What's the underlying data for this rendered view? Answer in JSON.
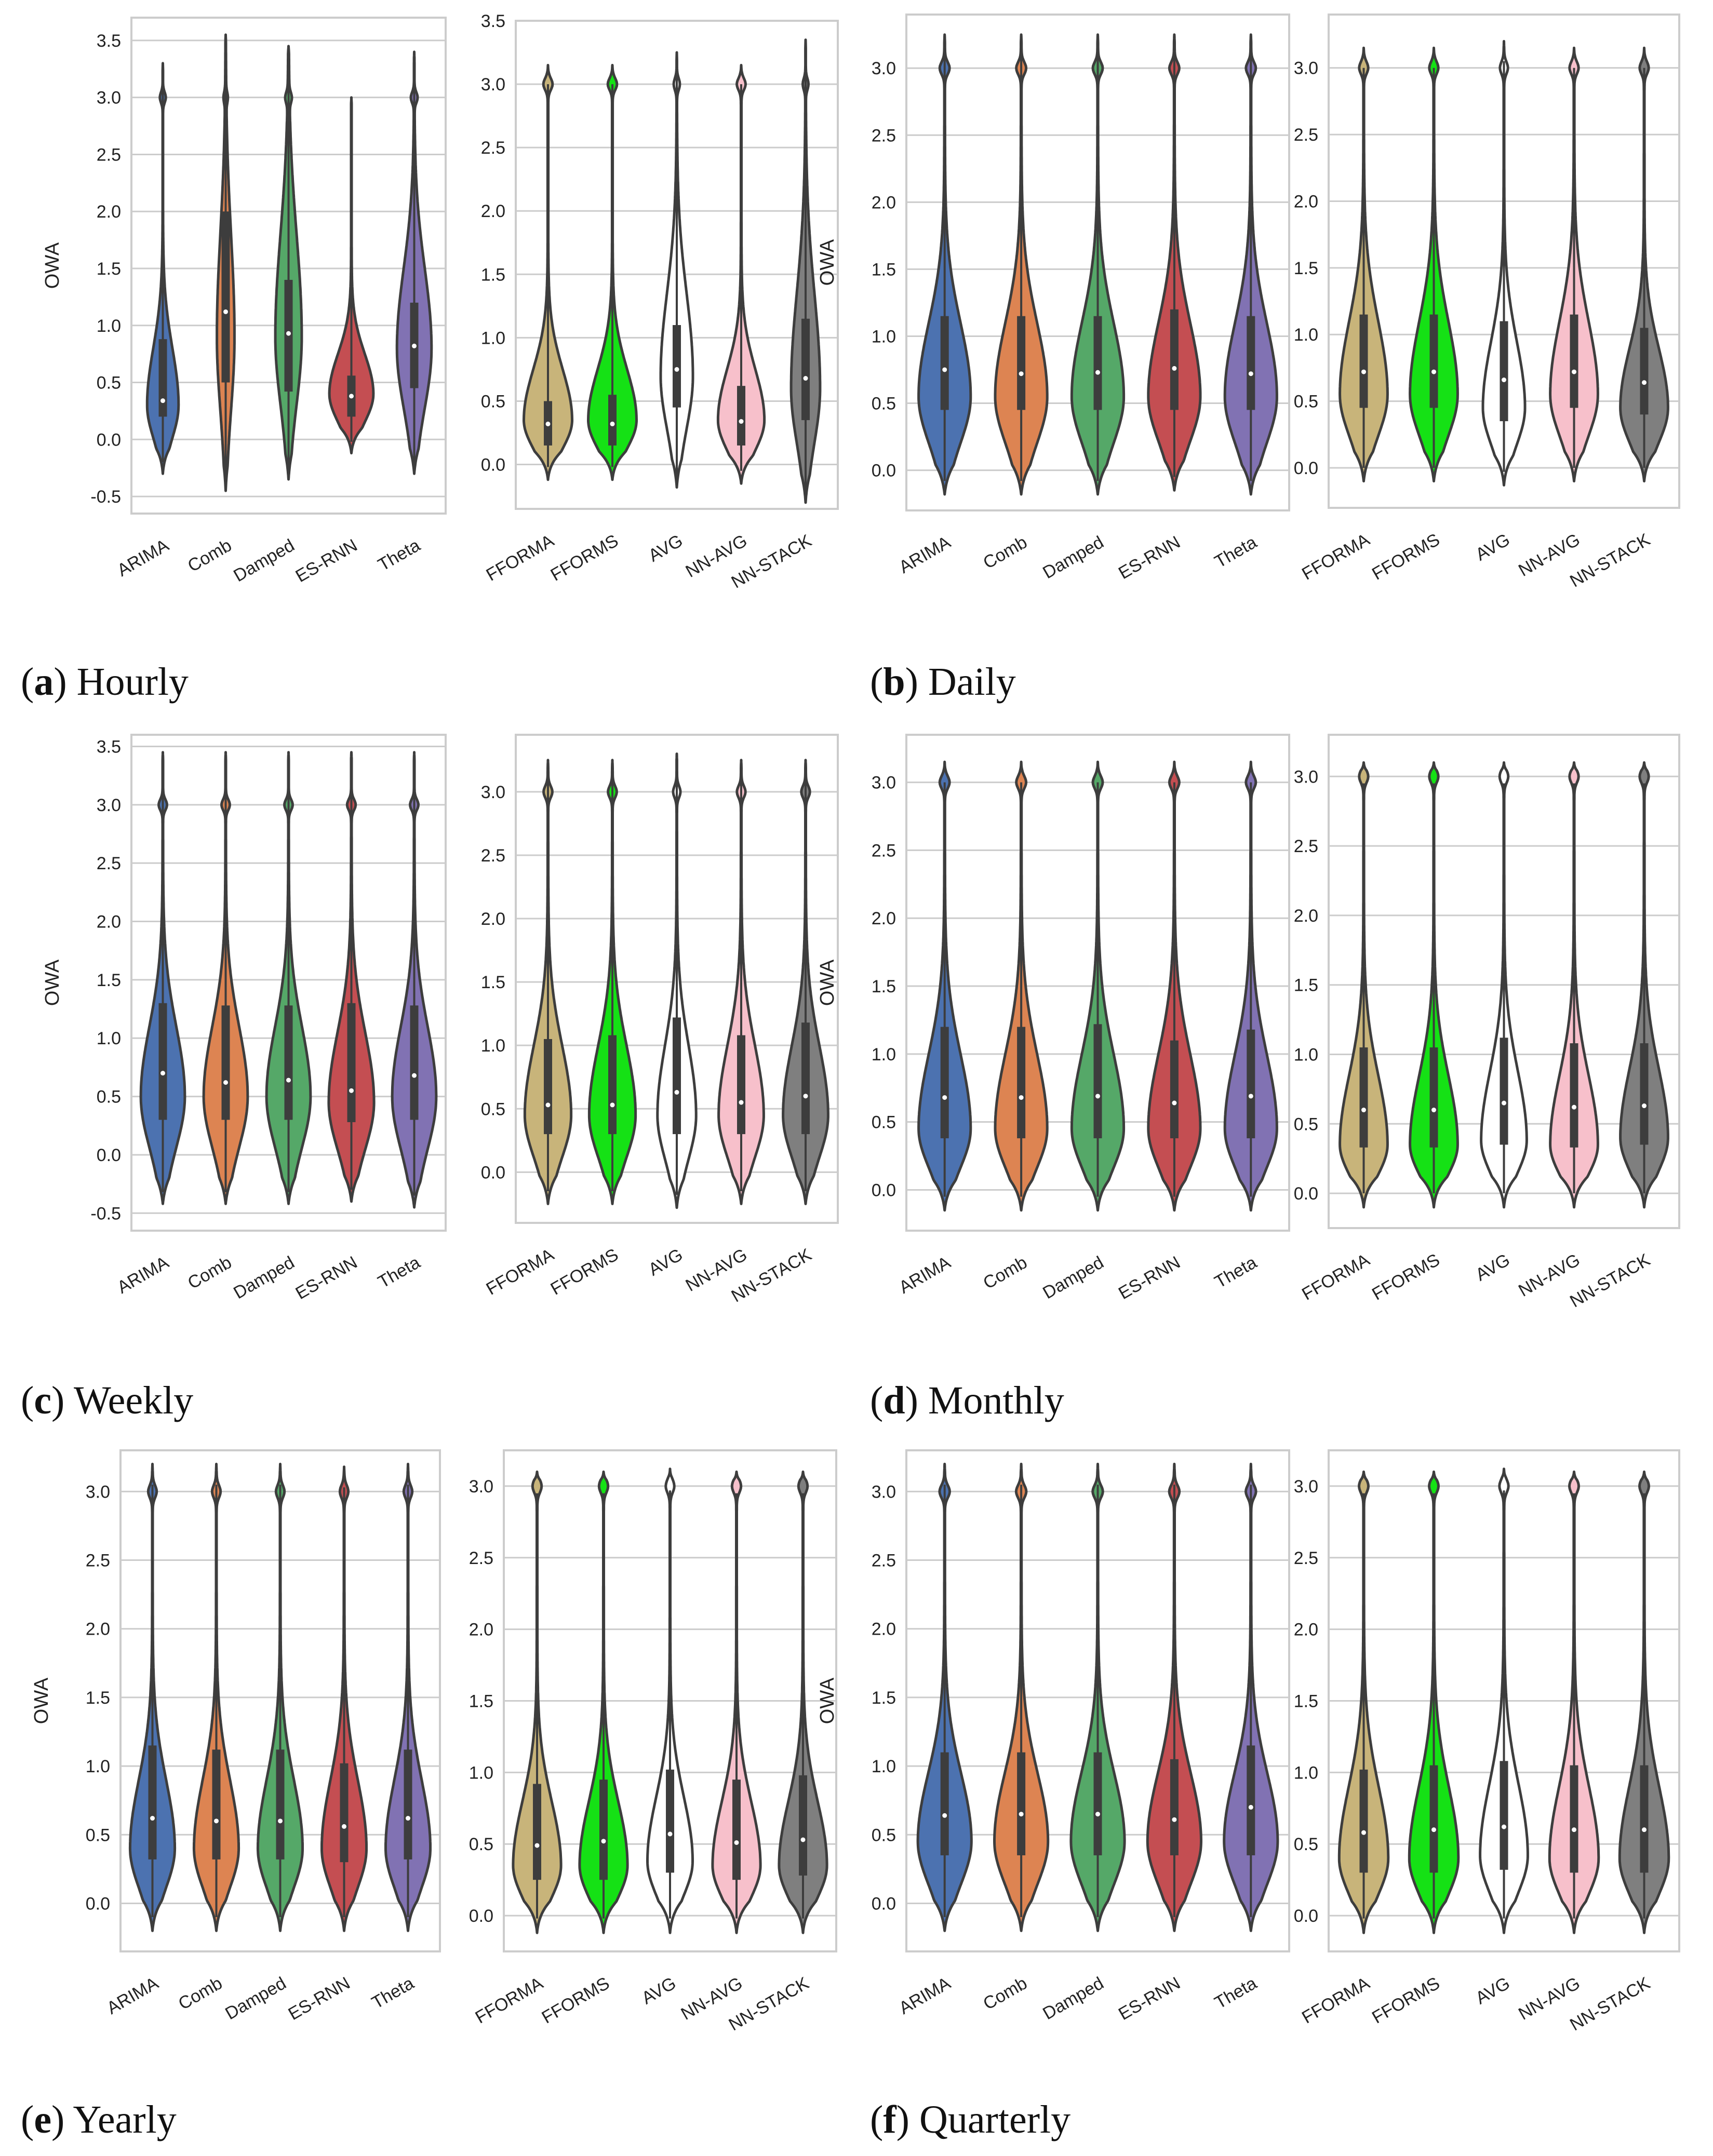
{
  "figure": {
    "captions": [
      {
        "letter": "a",
        "text": "Hourly"
      },
      {
        "letter": "b",
        "text": "Daily"
      },
      {
        "letter": "c",
        "text": "Weekly"
      },
      {
        "letter": "d",
        "text": "Monthly"
      },
      {
        "letter": "e",
        "text": "Yearly"
      },
      {
        "letter": "f",
        "text": "Quarterly"
      }
    ]
  },
  "chart_data": [
    {
      "id": "hourly-base",
      "type": "violin",
      "ylabel": "OWA",
      "ylim": [
        -0.65,
        3.7
      ],
      "yticks": [
        "-0.5",
        "0.0",
        "0.5",
        "1.0",
        "1.5",
        "2.0",
        "2.5",
        "3.0",
        "3.5"
      ],
      "grid": true,
      "categories": [
        "ARIMA",
        "Comb",
        "Damped",
        "ES-RNN",
        "Theta"
      ],
      "colors": [
        "#4c72b0",
        "#dd8452",
        "#55a868",
        "#c44e52",
        "#8172b3"
      ],
      "violins": [
        {
          "min": -0.3,
          "max": 3.3,
          "q1": 0.2,
          "median": 0.34,
          "q3": 0.88,
          "mode": 0.3,
          "wmax": 0.5,
          "upper": 0.5
        },
        {
          "min": -0.45,
          "max": 3.55,
          "q1": 0.5,
          "median": 1.12,
          "q3": 2.0,
          "mode": 0.9,
          "wmax": 0.28,
          "upper": 0.9
        },
        {
          "min": -0.35,
          "max": 3.45,
          "q1": 0.42,
          "median": 0.93,
          "q3": 1.4,
          "mode": 0.9,
          "wmax": 0.42,
          "upper": 0.9
        },
        {
          "min": -0.12,
          "max": 3.0,
          "q1": 0.2,
          "median": 0.38,
          "q3": 0.56,
          "mode": 0.4,
          "wmax": 0.7,
          "upper": 0.35
        },
        {
          "min": -0.3,
          "max": 3.4,
          "q1": 0.45,
          "median": 0.82,
          "q3": 1.2,
          "mode": 0.8,
          "wmax": 0.55,
          "upper": 0.7
        }
      ]
    },
    {
      "id": "hourly-ens",
      "type": "violin",
      "ylabel": "",
      "ylim": [
        -0.35,
        3.5
      ],
      "yticks": [
        "0.0",
        "0.5",
        "1.0",
        "1.5",
        "2.0",
        "2.5",
        "3.0",
        "3.5"
      ],
      "grid": true,
      "categories": [
        "FFORMA",
        "FFORMS",
        "AVG",
        "NN-AVG",
        "NN-STACK"
      ],
      "colors": [
        "#c8b47a",
        "#15e115",
        "#ffffff",
        "#f7c0cb",
        "#7f7f7f"
      ],
      "violins": [
        {
          "min": -0.12,
          "max": 3.15,
          "q1": 0.15,
          "median": 0.32,
          "q3": 0.5,
          "mode": 0.35,
          "wmax": 0.75,
          "upper": 0.4
        },
        {
          "min": -0.12,
          "max": 3.15,
          "q1": 0.15,
          "median": 0.32,
          "q3": 0.55,
          "mode": 0.35,
          "wmax": 0.75,
          "upper": 0.4
        },
        {
          "min": -0.18,
          "max": 3.25,
          "q1": 0.45,
          "median": 0.75,
          "q3": 1.1,
          "mode": 0.7,
          "wmax": 0.5,
          "upper": 0.65
        },
        {
          "min": -0.15,
          "max": 3.15,
          "q1": 0.15,
          "median": 0.34,
          "q3": 0.62,
          "mode": 0.35,
          "wmax": 0.72,
          "upper": 0.4
        },
        {
          "min": -0.3,
          "max": 3.35,
          "q1": 0.35,
          "median": 0.68,
          "q3": 1.15,
          "mode": 0.6,
          "wmax": 0.45,
          "upper": 0.75
        }
      ]
    },
    {
      "id": "daily-base",
      "type": "violin",
      "ylabel": "OWA",
      "ylim": [
        -0.3,
        3.4
      ],
      "yticks": [
        "0.0",
        "0.5",
        "1.0",
        "1.5",
        "2.0",
        "2.5",
        "3.0"
      ],
      "grid": true,
      "categories": [
        "ARIMA",
        "Comb",
        "Damped",
        "ES-RNN",
        "Theta"
      ],
      "colors": [
        "#4c72b0",
        "#dd8452",
        "#55a868",
        "#c44e52",
        "#8172b3"
      ],
      "violins": [
        {
          "min": -0.18,
          "max": 3.25,
          "q1": 0.45,
          "median": 0.75,
          "q3": 1.15,
          "mode": 0.55,
          "wmax": 0.68,
          "upper": 0.55
        },
        {
          "min": -0.18,
          "max": 3.25,
          "q1": 0.45,
          "median": 0.72,
          "q3": 1.15,
          "mode": 0.55,
          "wmax": 0.68,
          "upper": 0.55
        },
        {
          "min": -0.18,
          "max": 3.25,
          "q1": 0.45,
          "median": 0.73,
          "q3": 1.15,
          "mode": 0.55,
          "wmax": 0.68,
          "upper": 0.55
        },
        {
          "min": -0.15,
          "max": 3.25,
          "q1": 0.45,
          "median": 0.76,
          "q3": 1.2,
          "mode": 0.55,
          "wmax": 0.68,
          "upper": 0.55
        },
        {
          "min": -0.18,
          "max": 3.25,
          "q1": 0.45,
          "median": 0.72,
          "q3": 1.15,
          "mode": 0.55,
          "wmax": 0.68,
          "upper": 0.55
        }
      ]
    },
    {
      "id": "daily-ens",
      "type": "violin",
      "ylabel": "",
      "ylim": [
        -0.3,
        3.4
      ],
      "yticks": [
        "0.0",
        "0.5",
        "1.0",
        "1.5",
        "2.0",
        "2.5",
        "3.0"
      ],
      "grid": true,
      "categories": [
        "FFORMA",
        "FFORMS",
        "AVG",
        "NN-AVG",
        "NN-STACK"
      ],
      "colors": [
        "#c8b47a",
        "#15e115",
        "#ffffff",
        "#f7c0cb",
        "#7f7f7f"
      ],
      "violins": [
        {
          "min": -0.1,
          "max": 3.15,
          "q1": 0.45,
          "median": 0.72,
          "q3": 1.15,
          "mode": 0.55,
          "wmax": 0.68,
          "upper": 0.55
        },
        {
          "min": -0.1,
          "max": 3.15,
          "q1": 0.45,
          "median": 0.72,
          "q3": 1.15,
          "mode": 0.55,
          "wmax": 0.68,
          "upper": 0.55
        },
        {
          "min": -0.13,
          "max": 3.2,
          "q1": 0.35,
          "median": 0.66,
          "q3": 1.1,
          "mode": 0.45,
          "wmax": 0.6,
          "upper": 0.5
        },
        {
          "min": -0.1,
          "max": 3.15,
          "q1": 0.45,
          "median": 0.72,
          "q3": 1.15,
          "mode": 0.55,
          "wmax": 0.68,
          "upper": 0.55
        },
        {
          "min": -0.1,
          "max": 3.15,
          "q1": 0.4,
          "median": 0.64,
          "q3": 1.05,
          "mode": 0.45,
          "wmax": 0.68,
          "upper": 0.45
        }
      ]
    },
    {
      "id": "weekly-base",
      "type": "violin",
      "ylabel": "OWA",
      "ylim": [
        -0.65,
        3.6
      ],
      "yticks": [
        "-0.5",
        "0.0",
        "0.5",
        "1.0",
        "1.5",
        "2.0",
        "2.5",
        "3.0",
        "3.5"
      ],
      "grid": true,
      "categories": [
        "ARIMA",
        "Comb",
        "Damped",
        "ES-RNN",
        "Theta"
      ],
      "colors": [
        "#4c72b0",
        "#dd8452",
        "#55a868",
        "#c44e52",
        "#8172b3"
      ],
      "violins": [
        {
          "min": -0.42,
          "max": 3.45,
          "q1": 0.3,
          "median": 0.7,
          "q3": 1.3,
          "mode": 0.5,
          "wmax": 0.7,
          "upper": 0.6
        },
        {
          "min": -0.42,
          "max": 3.45,
          "q1": 0.3,
          "median": 0.62,
          "q3": 1.28,
          "mode": 0.5,
          "wmax": 0.7,
          "upper": 0.6
        },
        {
          "min": -0.42,
          "max": 3.45,
          "q1": 0.3,
          "median": 0.64,
          "q3": 1.28,
          "mode": 0.5,
          "wmax": 0.7,
          "upper": 0.6
        },
        {
          "min": -0.4,
          "max": 3.45,
          "q1": 0.28,
          "median": 0.55,
          "q3": 1.3,
          "mode": 0.45,
          "wmax": 0.72,
          "upper": 0.6
        },
        {
          "min": -0.45,
          "max": 3.45,
          "q1": 0.3,
          "median": 0.68,
          "q3": 1.28,
          "mode": 0.5,
          "wmax": 0.7,
          "upper": 0.6
        }
      ]
    },
    {
      "id": "weekly-ens",
      "type": "violin",
      "ylabel": "",
      "ylim": [
        -0.4,
        3.45
      ],
      "yticks": [
        "0.0",
        "0.5",
        "1.0",
        "1.5",
        "2.0",
        "2.5",
        "3.0"
      ],
      "grid": true,
      "categories": [
        "FFORMA",
        "FFORMS",
        "AVG",
        "NN-AVG",
        "NN-STACK"
      ],
      "colors": [
        "#c8b47a",
        "#15e115",
        "#ffffff",
        "#f7c0cb",
        "#7f7f7f"
      ],
      "violins": [
        {
          "min": -0.25,
          "max": 3.25,
          "q1": 0.3,
          "median": 0.53,
          "q3": 1.05,
          "mode": 0.45,
          "wmax": 0.72,
          "upper": 0.55
        },
        {
          "min": -0.25,
          "max": 3.25,
          "q1": 0.3,
          "median": 0.53,
          "q3": 1.08,
          "mode": 0.45,
          "wmax": 0.72,
          "upper": 0.55
        },
        {
          "min": -0.28,
          "max": 3.3,
          "q1": 0.3,
          "median": 0.63,
          "q3": 1.22,
          "mode": 0.45,
          "wmax": 0.6,
          "upper": 0.55
        },
        {
          "min": -0.25,
          "max": 3.25,
          "q1": 0.3,
          "median": 0.55,
          "q3": 1.08,
          "mode": 0.45,
          "wmax": 0.7,
          "upper": 0.55
        },
        {
          "min": -0.25,
          "max": 3.25,
          "q1": 0.3,
          "median": 0.6,
          "q3": 1.18,
          "mode": 0.45,
          "wmax": 0.7,
          "upper": 0.55
        }
      ]
    },
    {
      "id": "monthly-base",
      "type": "violin",
      "ylabel": "OWA",
      "ylim": [
        -0.3,
        3.35
      ],
      "yticks": [
        "0.0",
        "0.5",
        "1.0",
        "1.5",
        "2.0",
        "2.5",
        "3.0"
      ],
      "grid": true,
      "categories": [
        "ARIMA",
        "Comb",
        "Damped",
        "ES-RNN",
        "Theta"
      ],
      "colors": [
        "#4c72b0",
        "#dd8452",
        "#55a868",
        "#c44e52",
        "#8172b3"
      ],
      "violins": [
        {
          "min": -0.15,
          "max": 3.15,
          "q1": 0.38,
          "median": 0.68,
          "q3": 1.2,
          "mode": 0.45,
          "wmax": 0.68,
          "upper": 0.55
        },
        {
          "min": -0.15,
          "max": 3.15,
          "q1": 0.38,
          "median": 0.68,
          "q3": 1.2,
          "mode": 0.45,
          "wmax": 0.68,
          "upper": 0.55
        },
        {
          "min": -0.15,
          "max": 3.15,
          "q1": 0.38,
          "median": 0.69,
          "q3": 1.22,
          "mode": 0.45,
          "wmax": 0.68,
          "upper": 0.55
        },
        {
          "min": -0.15,
          "max": 3.15,
          "q1": 0.38,
          "median": 0.64,
          "q3": 1.1,
          "mode": 0.45,
          "wmax": 0.68,
          "upper": 0.55
        },
        {
          "min": -0.15,
          "max": 3.15,
          "q1": 0.38,
          "median": 0.69,
          "q3": 1.18,
          "mode": 0.45,
          "wmax": 0.68,
          "upper": 0.55
        }
      ]
    },
    {
      "id": "monthly-ens",
      "type": "violin",
      "ylabel": "",
      "ylim": [
        -0.25,
        3.3
      ],
      "yticks": [
        "0.0",
        "0.5",
        "1.0",
        "1.5",
        "2.0",
        "2.5",
        "3.0"
      ],
      "grid": true,
      "categories": [
        "FFORMA",
        "FFORMS",
        "AVG",
        "NN-AVG",
        "NN-STACK"
      ],
      "colors": [
        "#c8b47a",
        "#15e115",
        "#ffffff",
        "#f7c0cb",
        "#7f7f7f"
      ],
      "violins": [
        {
          "min": -0.1,
          "max": 3.1,
          "q1": 0.33,
          "median": 0.6,
          "q3": 1.05,
          "mode": 0.35,
          "wmax": 0.68,
          "upper": 0.5
        },
        {
          "min": -0.1,
          "max": 3.1,
          "q1": 0.33,
          "median": 0.6,
          "q3": 1.05,
          "mode": 0.35,
          "wmax": 0.68,
          "upper": 0.5
        },
        {
          "min": -0.1,
          "max": 3.1,
          "q1": 0.35,
          "median": 0.65,
          "q3": 1.12,
          "mode": 0.38,
          "wmax": 0.65,
          "upper": 0.5
        },
        {
          "min": -0.1,
          "max": 3.1,
          "q1": 0.33,
          "median": 0.62,
          "q3": 1.08,
          "mode": 0.35,
          "wmax": 0.68,
          "upper": 0.5
        },
        {
          "min": -0.1,
          "max": 3.1,
          "q1": 0.35,
          "median": 0.63,
          "q3": 1.08,
          "mode": 0.4,
          "wmax": 0.68,
          "upper": 0.5
        }
      ]
    },
    {
      "id": "yearly-base",
      "type": "violin",
      "ylabel": "OWA",
      "ylim": [
        -0.35,
        3.3
      ],
      "yticks": [
        "0.0",
        "0.5",
        "1.0",
        "1.5",
        "2.0",
        "2.5",
        "3.0"
      ],
      "grid": true,
      "categories": [
        "ARIMA",
        "Comb",
        "Damped",
        "ES-RNN",
        "Theta"
      ],
      "colors": [
        "#4c72b0",
        "#dd8452",
        "#55a868",
        "#c44e52",
        "#8172b3"
      ],
      "violins": [
        {
          "min": -0.2,
          "max": 3.2,
          "q1": 0.32,
          "median": 0.62,
          "q3": 1.15,
          "mode": 0.4,
          "wmax": 0.7,
          "upper": 0.5
        },
        {
          "min": -0.2,
          "max": 3.2,
          "q1": 0.32,
          "median": 0.6,
          "q3": 1.12,
          "mode": 0.4,
          "wmax": 0.7,
          "upper": 0.5
        },
        {
          "min": -0.2,
          "max": 3.2,
          "q1": 0.32,
          "median": 0.6,
          "q3": 1.12,
          "mode": 0.4,
          "wmax": 0.7,
          "upper": 0.5
        },
        {
          "min": -0.2,
          "max": 3.18,
          "q1": 0.3,
          "median": 0.56,
          "q3": 1.02,
          "mode": 0.4,
          "wmax": 0.7,
          "upper": 0.5
        },
        {
          "min": -0.2,
          "max": 3.2,
          "q1": 0.32,
          "median": 0.62,
          "q3": 1.12,
          "mode": 0.4,
          "wmax": 0.7,
          "upper": 0.5
        }
      ]
    },
    {
      "id": "yearly-ens",
      "type": "violin",
      "ylabel": "",
      "ylim": [
        -0.25,
        3.25
      ],
      "yticks": [
        "0.0",
        "0.5",
        "1.0",
        "1.5",
        "2.0",
        "2.5",
        "3.0"
      ],
      "grid": true,
      "categories": [
        "FFORMA",
        "FFORMS",
        "AVG",
        "NN-AVG",
        "NN-STACK"
      ],
      "colors": [
        "#c8b47a",
        "#15e115",
        "#ffffff",
        "#f7c0cb",
        "#7f7f7f"
      ],
      "violins": [
        {
          "min": -0.12,
          "max": 3.1,
          "q1": 0.25,
          "median": 0.49,
          "q3": 0.92,
          "mode": 0.35,
          "wmax": 0.72,
          "upper": 0.45
        },
        {
          "min": -0.12,
          "max": 3.1,
          "q1": 0.25,
          "median": 0.52,
          "q3": 0.95,
          "mode": 0.35,
          "wmax": 0.72,
          "upper": 0.45
        },
        {
          "min": -0.12,
          "max": 3.12,
          "q1": 0.3,
          "median": 0.57,
          "q3": 1.02,
          "mode": 0.38,
          "wmax": 0.68,
          "upper": 0.45
        },
        {
          "min": -0.12,
          "max": 3.1,
          "q1": 0.25,
          "median": 0.51,
          "q3": 0.95,
          "mode": 0.35,
          "wmax": 0.72,
          "upper": 0.45
        },
        {
          "min": -0.12,
          "max": 3.1,
          "q1": 0.28,
          "median": 0.53,
          "q3": 0.98,
          "mode": 0.35,
          "wmax": 0.72,
          "upper": 0.45
        }
      ]
    },
    {
      "id": "quarterly-base",
      "type": "violin",
      "ylabel": "OWA",
      "ylim": [
        -0.35,
        3.3
      ],
      "yticks": [
        "0.0",
        "0.5",
        "1.0",
        "1.5",
        "2.0",
        "2.5",
        "3.0"
      ],
      "grid": true,
      "categories": [
        "ARIMA",
        "Comb",
        "Damped",
        "ES-RNN",
        "Theta"
      ],
      "colors": [
        "#4c72b0",
        "#dd8452",
        "#55a868",
        "#c44e52",
        "#8172b3"
      ],
      "violins": [
        {
          "min": -0.2,
          "max": 3.2,
          "q1": 0.35,
          "median": 0.64,
          "q3": 1.1,
          "mode": 0.45,
          "wmax": 0.7,
          "upper": 0.5
        },
        {
          "min": -0.2,
          "max": 3.2,
          "q1": 0.35,
          "median": 0.65,
          "q3": 1.1,
          "mode": 0.45,
          "wmax": 0.7,
          "upper": 0.5
        },
        {
          "min": -0.2,
          "max": 3.2,
          "q1": 0.35,
          "median": 0.65,
          "q3": 1.1,
          "mode": 0.45,
          "wmax": 0.7,
          "upper": 0.5
        },
        {
          "min": -0.2,
          "max": 3.2,
          "q1": 0.35,
          "median": 0.61,
          "q3": 1.05,
          "mode": 0.45,
          "wmax": 0.7,
          "upper": 0.5
        },
        {
          "min": -0.2,
          "max": 3.2,
          "q1": 0.35,
          "median": 0.7,
          "q3": 1.15,
          "mode": 0.45,
          "wmax": 0.7,
          "upper": 0.5
        }
      ]
    },
    {
      "id": "quarterly-ens",
      "type": "violin",
      "ylabel": "",
      "ylim": [
        -0.25,
        3.25
      ],
      "yticks": [
        "0.0",
        "0.5",
        "1.0",
        "1.5",
        "2.0",
        "2.5",
        "3.0"
      ],
      "grid": true,
      "categories": [
        "FFORMA",
        "FFORMS",
        "AVG",
        "NN-AVG",
        "NN-STACK"
      ],
      "colors": [
        "#c8b47a",
        "#15e115",
        "#ffffff",
        "#f7c0cb",
        "#7f7f7f"
      ],
      "violins": [
        {
          "min": -0.12,
          "max": 3.1,
          "q1": 0.3,
          "median": 0.58,
          "q3": 1.02,
          "mode": 0.4,
          "wmax": 0.7,
          "upper": 0.5
        },
        {
          "min": -0.12,
          "max": 3.1,
          "q1": 0.3,
          "median": 0.6,
          "q3": 1.05,
          "mode": 0.4,
          "wmax": 0.7,
          "upper": 0.5
        },
        {
          "min": -0.12,
          "max": 3.12,
          "q1": 0.32,
          "median": 0.62,
          "q3": 1.08,
          "mode": 0.42,
          "wmax": 0.68,
          "upper": 0.5
        },
        {
          "min": -0.12,
          "max": 3.1,
          "q1": 0.3,
          "median": 0.6,
          "q3": 1.05,
          "mode": 0.4,
          "wmax": 0.7,
          "upper": 0.5
        },
        {
          "min": -0.12,
          "max": 3.1,
          "q1": 0.3,
          "median": 0.6,
          "q3": 1.05,
          "mode": 0.4,
          "wmax": 0.7,
          "upper": 0.5
        }
      ]
    }
  ]
}
